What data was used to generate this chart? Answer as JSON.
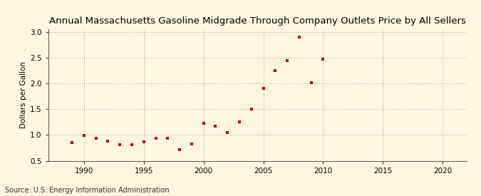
{
  "title": "Annual Massachusetts Gasoline Midgrade Through Company Outlets Price by All Sellers",
  "ylabel": "Dollars per Gallon",
  "source": "Source: U.S. Energy Information Administration",
  "years": [
    1989,
    1990,
    1991,
    1992,
    1993,
    1994,
    1995,
    1996,
    1997,
    1998,
    1999,
    2000,
    2001,
    2002,
    2003,
    2004,
    2005,
    2006,
    2007,
    2008,
    2009,
    2010
  ],
  "values": [
    0.85,
    0.99,
    0.94,
    0.88,
    0.81,
    0.81,
    0.87,
    0.93,
    0.94,
    0.72,
    0.83,
    1.22,
    1.17,
    1.05,
    1.25,
    1.51,
    1.91,
    2.25,
    2.44,
    2.9,
    2.02,
    2.47
  ],
  "xlim": [
    1987,
    2022
  ],
  "ylim": [
    0.5,
    3.05
  ],
  "xticks": [
    1990,
    1995,
    2000,
    2005,
    2010,
    2015,
    2020
  ],
  "yticks": [
    0.5,
    1.0,
    1.5,
    2.0,
    2.5,
    3.0
  ],
  "marker_color": "#bb0000",
  "marker": "s",
  "marker_size": 3.5,
  "background_color": "#fdf5e0",
  "grid_color": "#999999",
  "title_fontsize": 9.5,
  "label_fontsize": 7.5,
  "tick_fontsize": 7.5,
  "source_fontsize": 7
}
